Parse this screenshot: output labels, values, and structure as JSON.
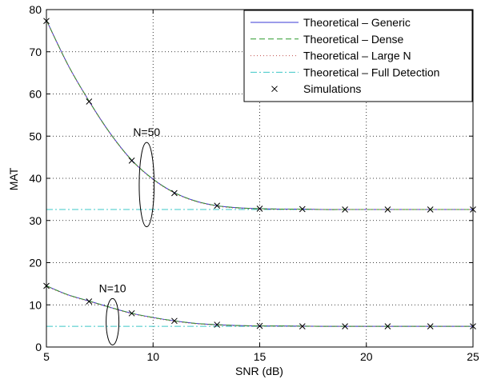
{
  "chart_data": {
    "type": "line",
    "xlabel": "SNR (dB)",
    "ylabel": "MAT",
    "xlim": [
      5,
      25
    ],
    "ylim": [
      0,
      80
    ],
    "xticks": [
      5,
      10,
      15,
      20,
      25
    ],
    "yticks": [
      0,
      10,
      20,
      30,
      40,
      50,
      60,
      70,
      80
    ],
    "grid": true,
    "legend_position": "top-right",
    "series": [
      {
        "name": "Theoretical – Generic",
        "style": "solid",
        "color": "#3a3ad6",
        "groups": [
          {
            "x": [
              5,
              6,
              7,
              8,
              9,
              10,
              11,
              12,
              13,
              14,
              15,
              16,
              17,
              18,
              19,
              20,
              21,
              22,
              23,
              24,
              25
            ],
            "y": [
              77.5,
              67.0,
              58.3,
              50.6,
              44.3,
              39.8,
              36.6,
              34.6,
              33.5,
              33.0,
              32.8,
              32.7,
              32.7,
              32.6,
              32.6,
              32.6,
              32.6,
              32.6,
              32.6,
              32.6,
              32.6
            ]
          },
          {
            "x": [
              5,
              6,
              7,
              8,
              9,
              10,
              11,
              12,
              13,
              14,
              15,
              16,
              17,
              18,
              19,
              20,
              21,
              22,
              23,
              24,
              25
            ],
            "y": [
              14.5,
              12.4,
              10.9,
              9.4,
              8.0,
              7.0,
              6.2,
              5.6,
              5.3,
              5.1,
              5.0,
              5.0,
              4.95,
              4.9,
              4.9,
              4.9,
              4.9,
              4.9,
              4.9,
              4.9,
              4.9
            ]
          }
        ]
      },
      {
        "name": "Theoretical – Dense",
        "style": "dashed",
        "color": "#2a9a2a",
        "groups": [
          {
            "x": [
              5,
              6,
              7,
              8,
              9,
              10,
              11,
              12,
              13,
              14,
              15,
              16,
              17,
              18,
              19,
              20,
              21,
              22,
              23,
              24,
              25
            ],
            "y": [
              77.5,
              67.0,
              58.3,
              50.6,
              44.3,
              39.8,
              36.6,
              34.6,
              33.5,
              33.0,
              32.8,
              32.7,
              32.7,
              32.6,
              32.6,
              32.6,
              32.6,
              32.6,
              32.6,
              32.6,
              32.6
            ]
          },
          {
            "x": [
              5,
              6,
              7,
              8,
              9,
              10,
              11,
              12,
              13,
              14,
              15,
              16,
              17,
              18,
              19,
              20,
              21,
              22,
              23,
              24,
              25
            ],
            "y": [
              14.5,
              12.4,
              10.9,
              9.4,
              8.0,
              7.0,
              6.2,
              5.6,
              5.3,
              5.1,
              5.0,
              5.0,
              4.95,
              4.9,
              4.9,
              4.9,
              4.9,
              4.9,
              4.9,
              4.9,
              4.9
            ]
          }
        ]
      },
      {
        "name": "Theoretical – Large N",
        "style": "dotted",
        "color": "#c0504d",
        "groups": [
          {
            "x": [
              5,
              6,
              7,
              8,
              9,
              10,
              11,
              12,
              13,
              14,
              15,
              16,
              17,
              18,
              19,
              20,
              21,
              22,
              23,
              24,
              25
            ],
            "y": [
              77.4,
              66.9,
              58.2,
              50.5,
              44.2,
              39.7,
              36.5,
              34.5,
              33.4,
              32.9,
              32.7,
              32.6,
              32.6,
              32.6,
              32.6,
              32.6,
              32.6,
              32.6,
              32.6,
              32.6,
              32.6
            ]
          },
          {
            "x": [
              5,
              6,
              7,
              8,
              9,
              10,
              11,
              12,
              13,
              14,
              15,
              16,
              17,
              18,
              19,
              20,
              21,
              22,
              23,
              24,
              25
            ],
            "y": [
              14.4,
              12.3,
              10.8,
              9.3,
              7.9,
              6.9,
              6.1,
              5.5,
              5.2,
              5.0,
              4.95,
              4.9,
              4.9,
              4.9,
              4.9,
              4.9,
              4.9,
              4.9,
              4.9,
              4.9,
              4.9
            ]
          }
        ]
      },
      {
        "name": "Theoretical – Full Detection",
        "style": "dashdot",
        "color": "#3cc8c8",
        "groups": [
          {
            "x": [
              5,
              25
            ],
            "y": [
              32.6,
              32.6
            ]
          },
          {
            "x": [
              5,
              25
            ],
            "y": [
              4.9,
              4.9
            ]
          }
        ]
      },
      {
        "name": "Simulations",
        "style": "marker-x",
        "color": "#000000",
        "groups": [
          {
            "x": [
              5,
              7,
              9,
              11,
              13,
              15,
              17,
              19,
              21,
              23,
              25
            ],
            "y": [
              77.3,
              58.2,
              44.2,
              36.5,
              33.5,
              32.8,
              32.7,
              32.6,
              32.6,
              32.6,
              32.6
            ]
          },
          {
            "x": [
              5,
              7,
              9,
              11,
              13,
              15,
              17,
              19,
              21,
              23,
              25
            ],
            "y": [
              14.5,
              10.8,
              8.0,
              6.2,
              5.3,
              5.0,
              4.9,
              4.9,
              4.9,
              4.9,
              4.9
            ]
          }
        ]
      }
    ],
    "annotations": [
      {
        "text": "N=50",
        "ellipse_center": [
          9.7,
          38.5
        ],
        "ellipse_radius_x": 0.35,
        "ellipse_radius_y": 10
      },
      {
        "text": "N=10",
        "ellipse_center": [
          8.1,
          6.0
        ],
        "ellipse_radius_x": 0.3,
        "ellipse_radius_y": 5.5
      }
    ]
  }
}
